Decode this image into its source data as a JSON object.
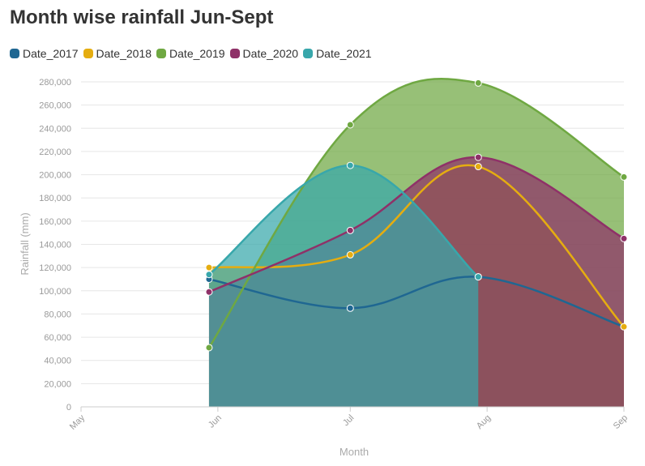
{
  "chart_data": {
    "type": "area",
    "title": "Month wise rainfall Jun-Sept",
    "xlabel": "Month",
    "ylabel": "Rainfall (mm)",
    "ylim": [
      0,
      280000
    ],
    "y_ticks": [
      0,
      20000,
      40000,
      60000,
      80000,
      100000,
      120000,
      140000,
      160000,
      180000,
      200000,
      220000,
      240000,
      260000,
      280000
    ],
    "y_tick_labels": [
      "0",
      "20,000",
      "40,000",
      "60,000",
      "80,000",
      "100,000",
      "120,000",
      "140,000",
      "160,000",
      "180,000",
      "200,000",
      "220,000",
      "240,000",
      "260,000",
      "280,000"
    ],
    "x_ticks": [
      {
        "date": "2000-05-01",
        "label": "May"
      },
      {
        "date": "2000-06-01",
        "label": "Jun"
      },
      {
        "date": "2000-07-01",
        "label": "Jul"
      },
      {
        "date": "2000-08-01",
        "label": "Aug"
      },
      {
        "date": "2000-09-01",
        "label": "Sep"
      }
    ],
    "xlim": [
      "2000-05-01",
      "2000-09-01"
    ],
    "grid": "horizontal",
    "legend_position": "top-left",
    "smooth": true,
    "series": [
      {
        "name": "Date_2017",
        "color": "#1f6792",
        "dates": [
          "2000-05-30",
          "2000-07-01",
          "2000-07-30",
          "2000-09-01"
        ],
        "values": [
          110000,
          85000,
          112000,
          69000
        ]
      },
      {
        "name": "Date_2018",
        "color": "#e5ad10",
        "dates": [
          "2000-05-30",
          "2000-07-01",
          "2000-07-30",
          "2000-09-01"
        ],
        "values": [
          120000,
          131000,
          207000,
          69000
        ]
      },
      {
        "name": "Date_2019",
        "color": "#6fa842",
        "dates": [
          "2000-05-30",
          "2000-07-01",
          "2000-07-30",
          "2000-09-01"
        ],
        "values": [
          51000,
          243000,
          279000,
          198000
        ]
      },
      {
        "name": "Date_2020",
        "color": "#8f3168",
        "dates": [
          "2000-05-30",
          "2000-07-01",
          "2000-07-30",
          "2000-09-01"
        ],
        "values": [
          99000,
          152000,
          215000,
          145000
        ]
      },
      {
        "name": "Date_2021",
        "color": "#38a7ab",
        "dates": [
          "2000-05-30",
          "2000-07-01",
          "2000-07-30"
        ],
        "values": [
          114000,
          208000,
          112000
        ]
      }
    ]
  }
}
